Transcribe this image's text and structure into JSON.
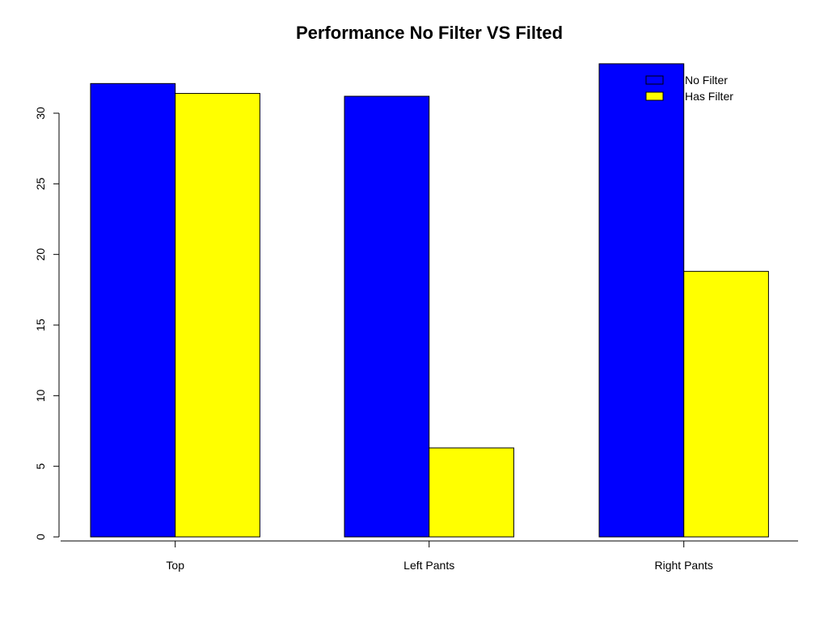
{
  "chart_data": {
    "type": "bar",
    "title": "Performance No Filter VS Filted",
    "xlabel": "",
    "ylabel": "",
    "categories": [
      "Top",
      "Left Pants",
      "Right Pants"
    ],
    "series": [
      {
        "name": "No Filter",
        "color": "#0000ff",
        "values": [
          32.1,
          31.2,
          33.5
        ]
      },
      {
        "name": "Has Filter",
        "color": "#ffff00",
        "values": [
          31.4,
          6.3,
          18.8
        ]
      }
    ],
    "ylim": [
      0,
      33.5
    ],
    "yticks": [
      0,
      5,
      10,
      15,
      20,
      25,
      30
    ],
    "grid": false,
    "legend_position": "top-right"
  }
}
